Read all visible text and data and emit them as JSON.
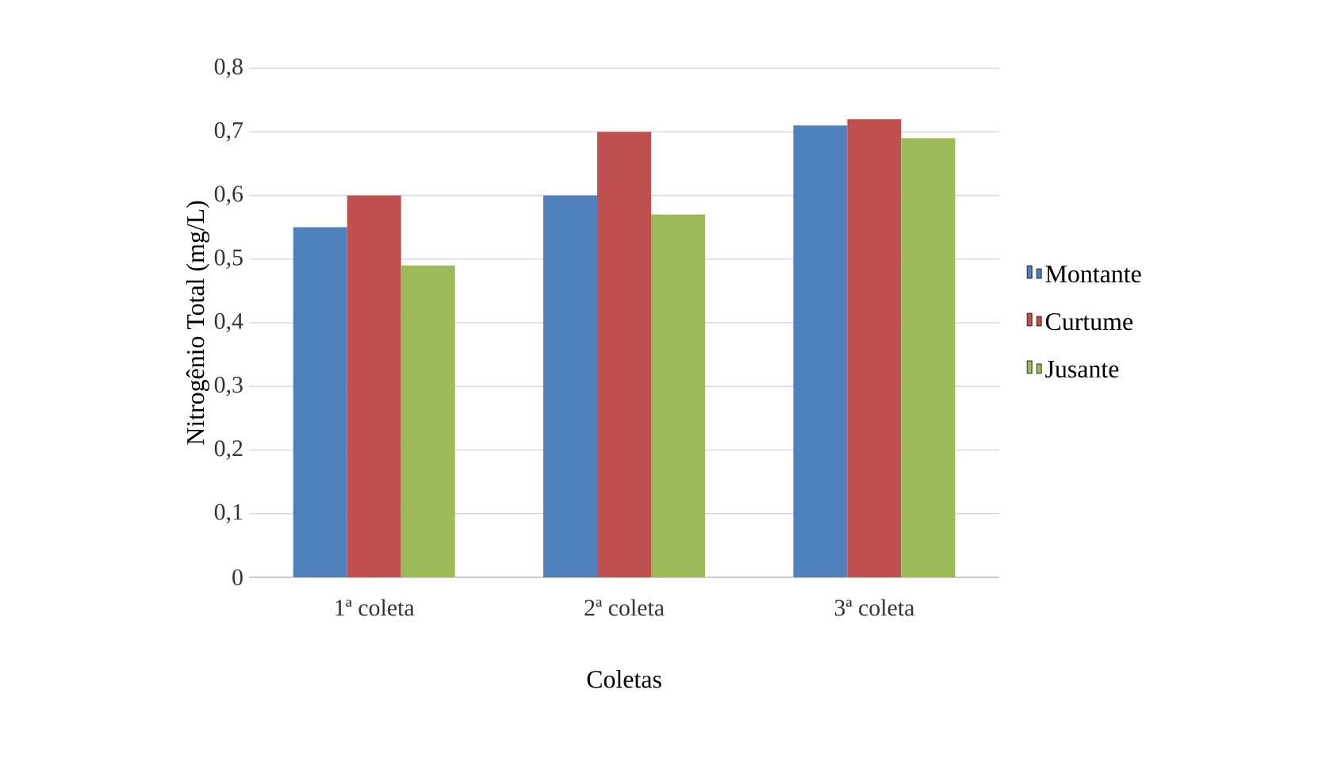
{
  "chart_data": {
    "type": "bar",
    "xlabel": "Coletas",
    "ylabel": "Nitrogênio  Total (mg/L)",
    "categories": [
      "1ª coleta",
      "2ª coleta",
      "3ª coleta"
    ],
    "series": [
      {
        "name": "Montante",
        "color": "#4f81bd",
        "values": [
          0.55,
          0.6,
          0.71
        ]
      },
      {
        "name": "Curtume",
        "color": "#c0504d",
        "values": [
          0.6,
          0.7,
          0.72
        ]
      },
      {
        "name": "Jusante",
        "color": "#9bbb59",
        "values": [
          0.49,
          0.57,
          0.69
        ]
      }
    ],
    "ylim": [
      0,
      0.8
    ],
    "yticks": [
      {
        "value": 0,
        "label": "0"
      },
      {
        "value": 0.1,
        "label": "0,1"
      },
      {
        "value": 0.2,
        "label": "0,2"
      },
      {
        "value": 0.3,
        "label": "0,3"
      },
      {
        "value": 0.4,
        "label": "0,4"
      },
      {
        "value": 0.5,
        "label": "0,5"
      },
      {
        "value": 0.6,
        "label": "0,6"
      },
      {
        "value": 0.7,
        "label": "0,7"
      },
      {
        "value": 0.8,
        "label": "0,8"
      }
    ],
    "grid": "y",
    "legend": "right"
  }
}
